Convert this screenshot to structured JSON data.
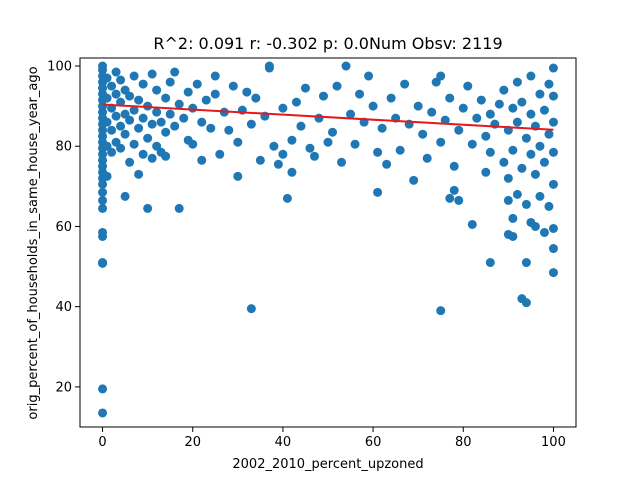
{
  "chart_data": {
    "type": "scatter",
    "title": "R^2: 0.091 r: -0.302 p: 0.0Num Obsv: 2119",
    "xlabel": "2002_2010_percent_upzoned",
    "ylabel": "orig_percent_of_households_in_same_house_year_ago",
    "xlim": [
      -5,
      105
    ],
    "ylim": [
      10,
      102
    ],
    "x_ticks": [
      0,
      20,
      40,
      60,
      80,
      100
    ],
    "y_ticks": [
      20,
      40,
      60,
      80,
      100
    ],
    "grid": false,
    "legend": "none",
    "point_color": "#1f77b4",
    "fit_color": "#e41a1c",
    "regression_line": {
      "x": [
        0,
        100
      ],
      "y": [
        90.4,
        84.1
      ]
    },
    "points": [
      [
        0,
        13.5
      ],
      [
        0,
        19.5
      ],
      [
        0,
        51.0
      ],
      [
        0,
        50.8
      ],
      [
        0,
        57.5
      ],
      [
        0,
        58.5
      ],
      [
        0,
        64.5
      ],
      [
        0,
        66.5
      ],
      [
        0,
        68.5
      ],
      [
        0,
        70.5
      ],
      [
        0,
        72.0
      ],
      [
        0,
        73.5
      ],
      [
        0,
        75.0
      ],
      [
        0,
        76.5
      ],
      [
        0,
        78.0
      ],
      [
        0,
        79.5
      ],
      [
        0,
        81.0
      ],
      [
        0,
        82.5
      ],
      [
        0,
        84.0
      ],
      [
        0,
        85.5
      ],
      [
        0,
        87.0
      ],
      [
        0,
        88.5
      ],
      [
        0,
        90.0
      ],
      [
        0,
        91.5
      ],
      [
        0,
        93.0
      ],
      [
        0,
        94.5
      ],
      [
        0,
        96.0
      ],
      [
        0,
        97.5
      ],
      [
        0,
        99.0
      ],
      [
        0,
        100.0
      ],
      [
        1,
        72.5
      ],
      [
        1,
        80.0
      ],
      [
        1,
        86.0
      ],
      [
        1,
        92.0
      ],
      [
        1,
        97.0
      ],
      [
        2,
        78.5
      ],
      [
        2,
        84.0
      ],
      [
        2,
        89.5
      ],
      [
        2,
        95.0
      ],
      [
        3,
        81.0
      ],
      [
        3,
        87.5
      ],
      [
        3,
        93.0
      ],
      [
        3,
        98.5
      ],
      [
        4,
        79.5
      ],
      [
        4,
        85.0
      ],
      [
        4,
        91.0
      ],
      [
        4,
        96.5
      ],
      [
        5,
        67.5
      ],
      [
        5,
        83.0
      ],
      [
        5,
        88.0
      ],
      [
        5,
        94.0
      ],
      [
        6,
        76.0
      ],
      [
        6,
        86.5
      ],
      [
        6,
        92.5
      ],
      [
        7,
        80.5
      ],
      [
        7,
        89.0
      ],
      [
        7,
        97.5
      ],
      [
        8,
        73.0
      ],
      [
        8,
        84.5
      ],
      [
        8,
        91.5
      ],
      [
        9,
        78.0
      ],
      [
        9,
        87.0
      ],
      [
        9,
        95.5
      ],
      [
        10,
        64.5
      ],
      [
        10,
        82.0
      ],
      [
        10,
        90.0
      ],
      [
        11,
        77.0
      ],
      [
        11,
        85.5
      ],
      [
        11,
        98.0
      ],
      [
        12,
        80.0
      ],
      [
        12,
        88.5
      ],
      [
        12,
        94.0
      ],
      [
        13,
        78.5
      ],
      [
        13,
        86.0
      ],
      [
        14,
        77.5
      ],
      [
        14,
        83.5
      ],
      [
        14,
        92.0
      ],
      [
        15,
        88.0
      ],
      [
        15,
        96.0
      ],
      [
        16,
        85.0
      ],
      [
        16,
        98.5
      ],
      [
        17,
        64.5
      ],
      [
        17,
        90.5
      ],
      [
        18,
        87.0
      ],
      [
        19,
        81.5
      ],
      [
        19,
        93.5
      ],
      [
        20,
        80.5
      ],
      [
        20,
        89.5
      ],
      [
        21,
        95.5
      ],
      [
        22,
        76.5
      ],
      [
        22,
        86.0
      ],
      [
        23,
        91.5
      ],
      [
        24,
        84.5
      ],
      [
        25,
        93.0
      ],
      [
        25,
        97.5
      ],
      [
        26,
        78.0
      ],
      [
        27,
        88.5
      ],
      [
        28,
        84.0
      ],
      [
        29,
        95.0
      ],
      [
        30,
        72.5
      ],
      [
        30,
        81.0
      ],
      [
        31,
        89.0
      ],
      [
        32,
        93.5
      ],
      [
        33,
        39.5
      ],
      [
        33,
        85.5
      ],
      [
        34,
        92.0
      ],
      [
        35,
        76.5
      ],
      [
        36,
        87.5
      ],
      [
        37,
        99.5
      ],
      [
        37,
        100.0
      ],
      [
        38,
        80.0
      ],
      [
        39,
        75.5
      ],
      [
        40,
        78.0
      ],
      [
        40,
        89.5
      ],
      [
        41,
        67.0
      ],
      [
        42,
        73.5
      ],
      [
        42,
        81.5
      ],
      [
        43,
        91.0
      ],
      [
        44,
        85.0
      ],
      [
        45,
        94.5
      ],
      [
        46,
        79.5
      ],
      [
        47,
        77.5
      ],
      [
        48,
        87.0
      ],
      [
        49,
        92.5
      ],
      [
        50,
        81.0
      ],
      [
        51,
        83.5
      ],
      [
        52,
        95.0
      ],
      [
        53,
        76.0
      ],
      [
        54,
        100.0
      ],
      [
        55,
        88.0
      ],
      [
        56,
        80.5
      ],
      [
        57,
        93.0
      ],
      [
        58,
        86.0
      ],
      [
        59,
        97.5
      ],
      [
        60,
        90.0
      ],
      [
        61,
        68.5
      ],
      [
        61,
        78.5
      ],
      [
        62,
        84.5
      ],
      [
        63,
        75.5
      ],
      [
        64,
        92.0
      ],
      [
        65,
        87.0
      ],
      [
        66,
        79.0
      ],
      [
        67,
        95.5
      ],
      [
        68,
        85.5
      ],
      [
        69,
        71.5
      ],
      [
        70,
        90.0
      ],
      [
        71,
        83.0
      ],
      [
        72,
        77.0
      ],
      [
        73,
        88.5
      ],
      [
        74,
        96.0
      ],
      [
        75,
        39.0
      ],
      [
        75,
        81.0
      ],
      [
        75,
        97.5
      ],
      [
        76,
        86.5
      ],
      [
        77,
        67.0
      ],
      [
        77,
        92.0
      ],
      [
        78,
        69.0
      ],
      [
        78,
        75.0
      ],
      [
        79,
        66.5
      ],
      [
        79,
        84.0
      ],
      [
        80,
        89.5
      ],
      [
        81,
        95.0
      ],
      [
        82,
        60.5
      ],
      [
        82,
        80.5
      ],
      [
        83,
        87.0
      ],
      [
        84,
        91.5
      ],
      [
        85,
        73.5
      ],
      [
        85,
        82.5
      ],
      [
        86,
        51.0
      ],
      [
        86,
        78.5
      ],
      [
        86,
        88.0
      ],
      [
        87,
        85.5
      ],
      [
        88,
        90.5
      ],
      [
        89,
        76.0
      ],
      [
        89,
        94.0
      ],
      [
        90,
        58.0
      ],
      [
        90,
        66.5
      ],
      [
        90,
        72.0
      ],
      [
        90,
        84.0
      ],
      [
        91,
        57.5
      ],
      [
        91,
        62.0
      ],
      [
        91,
        79.0
      ],
      [
        91,
        89.5
      ],
      [
        92,
        68.0
      ],
      [
        92,
        86.0
      ],
      [
        92,
        96.0
      ],
      [
        93,
        42.0
      ],
      [
        93,
        74.5
      ],
      [
        93,
        91.0
      ],
      [
        94,
        41.0
      ],
      [
        94,
        51.0
      ],
      [
        94,
        65.5
      ],
      [
        94,
        82.0
      ],
      [
        95,
        61.0
      ],
      [
        95,
        78.0
      ],
      [
        95,
        88.0
      ],
      [
        95,
        97.5
      ],
      [
        96,
        60.0
      ],
      [
        96,
        73.0
      ],
      [
        96,
        85.0
      ],
      [
        97,
        67.5
      ],
      [
        97,
        80.0
      ],
      [
        97,
        93.0
      ],
      [
        98,
        58.5
      ],
      [
        98,
        76.0
      ],
      [
        98,
        89.0
      ],
      [
        99,
        65.0
      ],
      [
        99,
        83.0
      ],
      [
        99,
        95.5
      ],
      [
        100,
        48.5
      ],
      [
        100,
        54.5
      ],
      [
        100,
        59.5
      ],
      [
        100,
        70.5
      ],
      [
        100,
        78.5
      ],
      [
        100,
        86.0
      ],
      [
        100,
        92.5
      ],
      [
        100,
        99.5
      ]
    ]
  }
}
